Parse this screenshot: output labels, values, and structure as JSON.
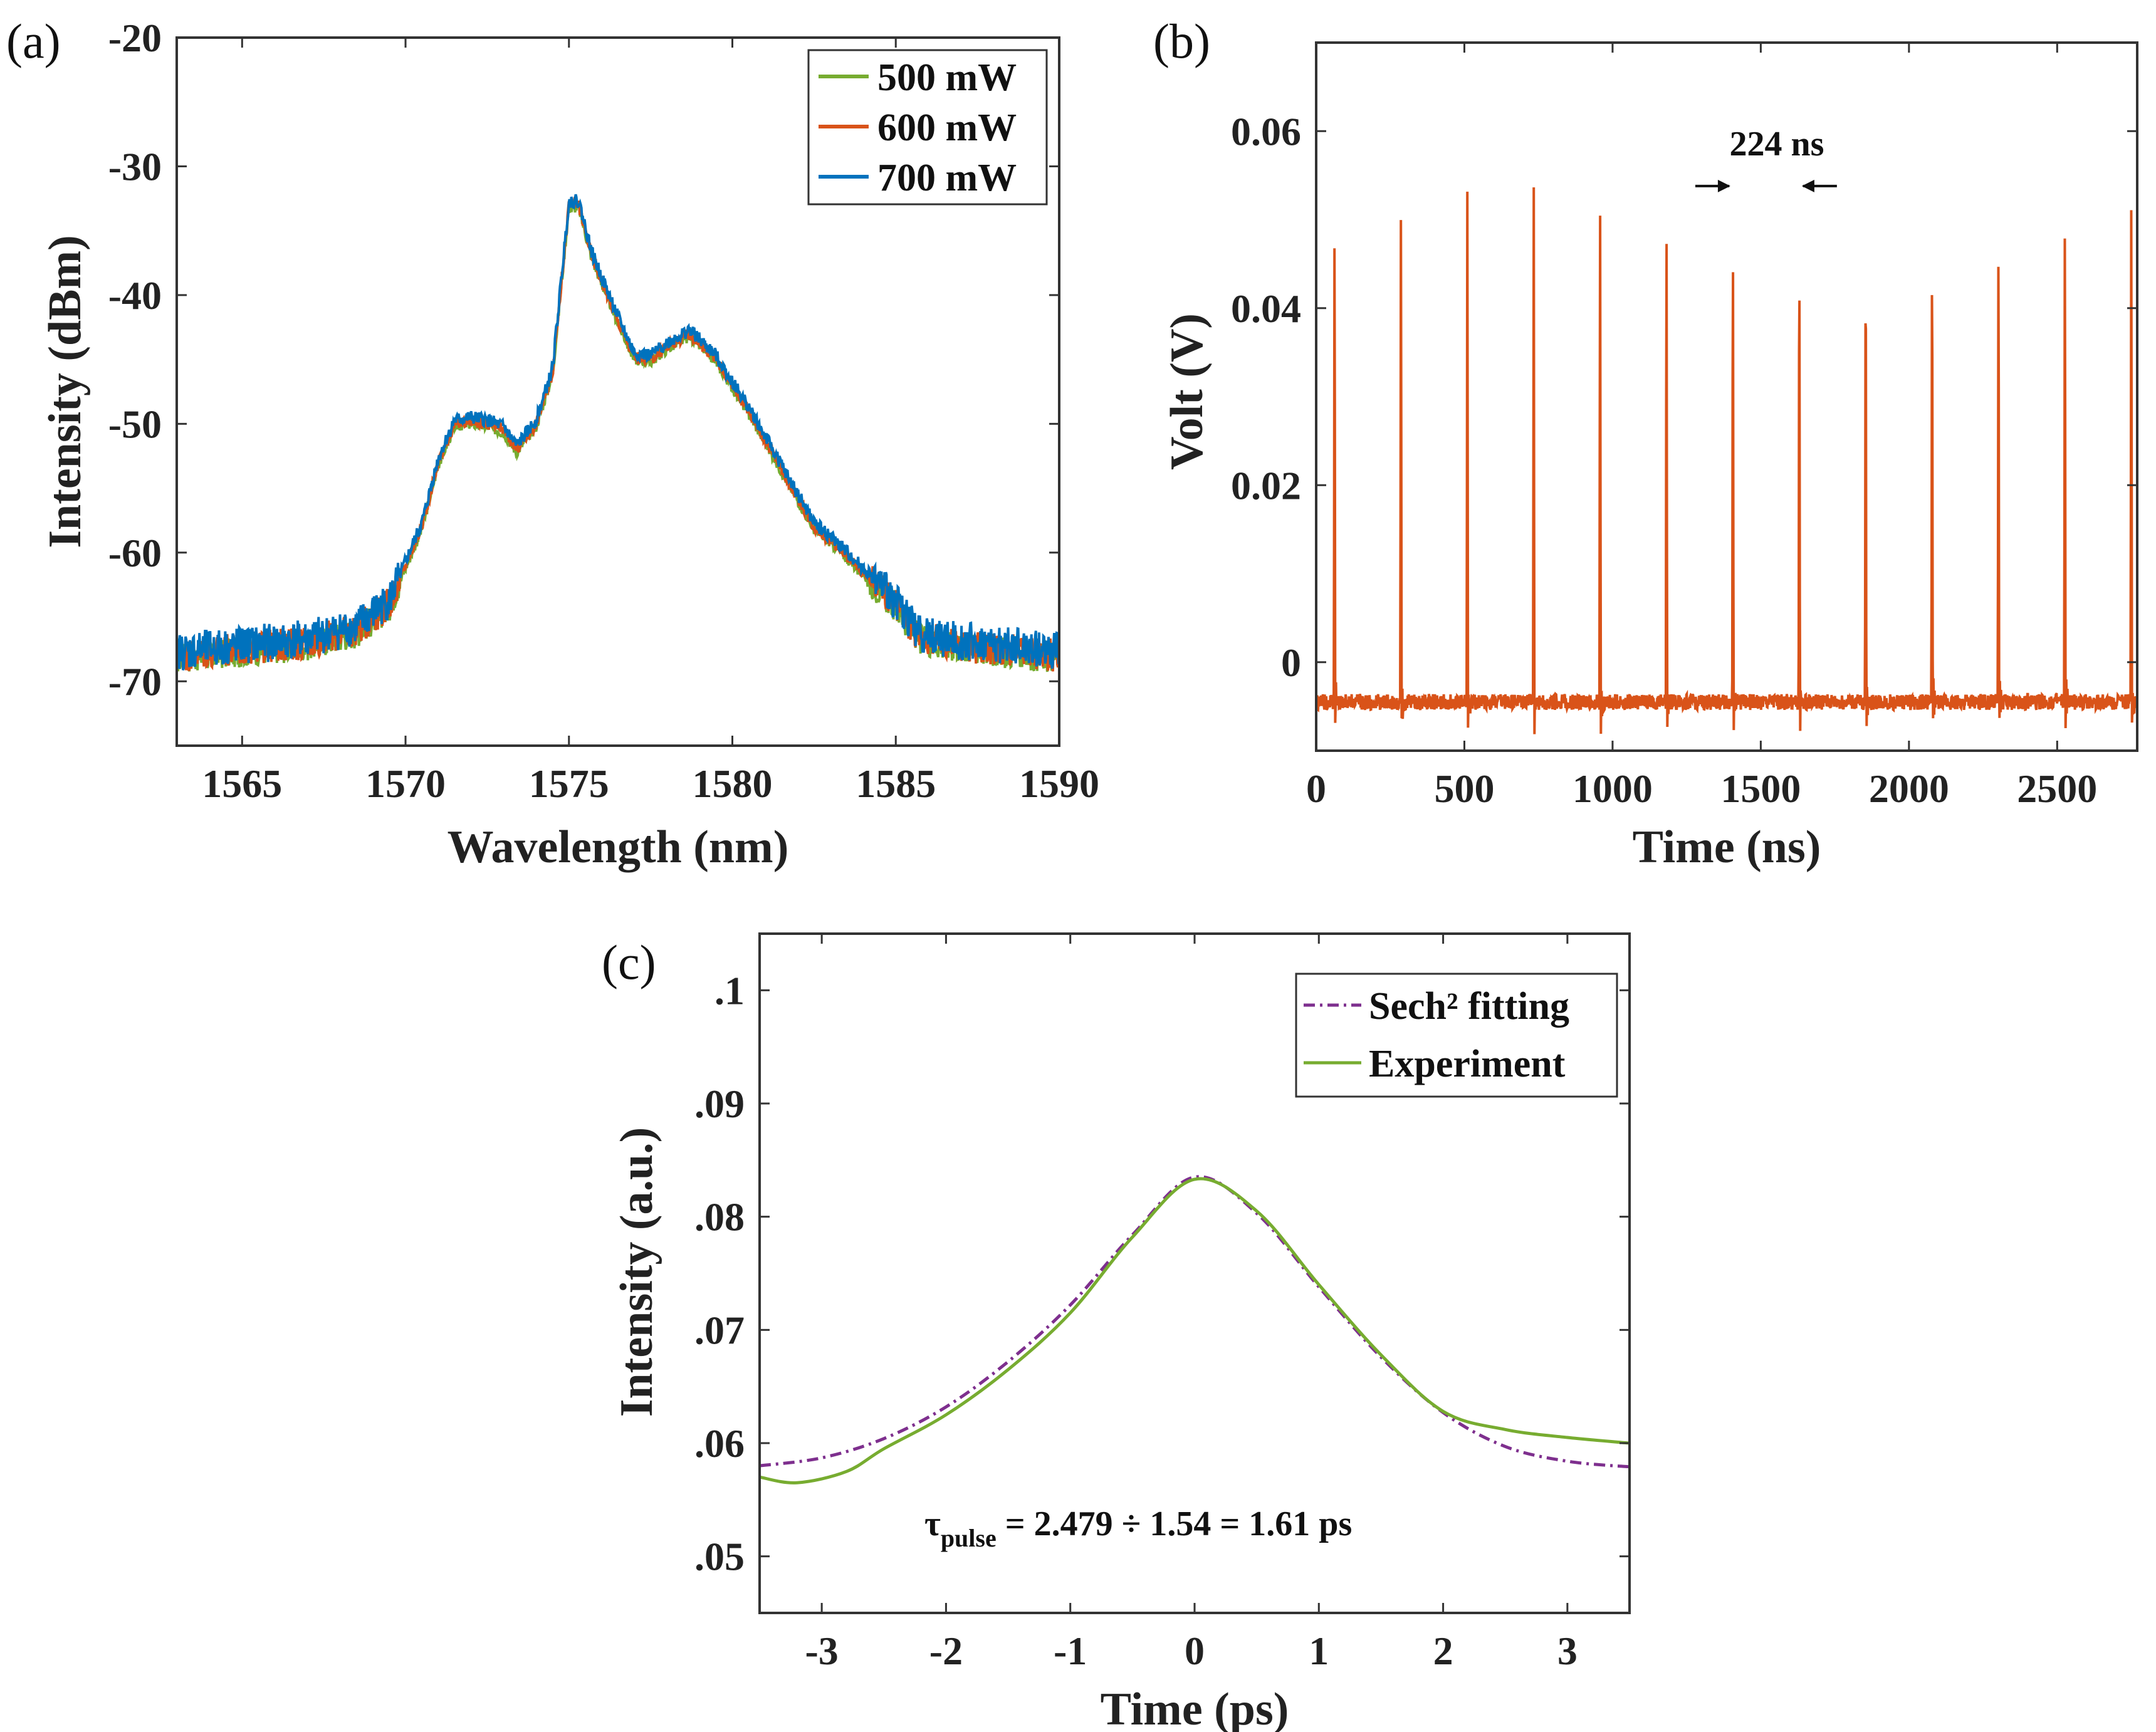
{
  "chart_data": [
    {
      "type": "line",
      "panel_label": "(a)",
      "xlabel": "Wavelength (nm)",
      "ylabel": "Intensity (dBm)",
      "xlim": [
        1563,
        1590
      ],
      "ylim": [
        -75,
        -20
      ],
      "xticks": [
        1565,
        1570,
        1575,
        1580,
        1585,
        1590
      ],
      "yticks": [
        -70,
        -60,
        -50,
        -40,
        -30,
        -20
      ],
      "grid": false,
      "legend_position": "top-right",
      "series": [
        {
          "name": "500 mW",
          "color": "#77ac30",
          "noise": 1.2,
          "offset": -0.2
        },
        {
          "name": "600 mW",
          "color": "#d95319",
          "noise": 1.3,
          "offset": 0.0
        },
        {
          "name": "700 mW",
          "color": "#0072bd",
          "noise": 1.5,
          "offset": 0.3
        }
      ],
      "envelope_x": [
        1563,
        1565,
        1567,
        1568.5,
        1569.5,
        1570,
        1570.5,
        1571,
        1571.5,
        1572,
        1572.5,
        1573,
        1573.4,
        1574,
        1574.5,
        1575,
        1575.3,
        1575.7,
        1576.5,
        1577,
        1577.5,
        1578,
        1578.7,
        1579.5,
        1580.5,
        1581.5,
        1582.5,
        1583.2,
        1584,
        1585,
        1585.7,
        1586.5,
        1588,
        1590
      ],
      "envelope_y": [
        -68,
        -67.5,
        -67,
        -66,
        -64,
        -61,
        -58,
        -53,
        -50,
        -49.8,
        -50,
        -50.5,
        -52,
        -50,
        -46,
        -33,
        -33,
        -37,
        -42,
        -44.8,
        -45,
        -44,
        -43,
        -45,
        -49,
        -53.5,
        -58,
        -59.5,
        -61.5,
        -64,
        -66.5,
        -67,
        -67.5,
        -68
      ]
    },
    {
      "type": "line",
      "panel_label": "(b)",
      "xlabel": "Time (ns)",
      "ylabel": "Volt (V)",
      "xlim": [
        0,
        2770
      ],
      "ylim": [
        -0.01,
        0.07
      ],
      "xticks": [
        0,
        500,
        1000,
        1500,
        2000,
        2500
      ],
      "yticks": [
        0,
        0.02,
        0.04,
        0.06
      ],
      "grid": false,
      "series": [
        {
          "name": "pulse train",
          "color": "#d95319"
        }
      ],
      "pulse_times": [
        62,
        286,
        510,
        734,
        958,
        1182,
        1406,
        1630,
        1854,
        2078,
        2302,
        2526,
        2750
      ],
      "peak_value": 0.055,
      "baseline_value": -0.0045,
      "period_annotation": "224 ns"
    },
    {
      "type": "line",
      "panel_label": "(c)",
      "xlabel": "Time (ps)",
      "ylabel": "Intensity (a.u.)",
      "xlim": [
        -3.5,
        3.5
      ],
      "ylim": [
        0.045,
        0.105
      ],
      "xticks": [
        -3,
        -2,
        -1,
        0,
        1,
        2,
        3
      ],
      "yticks": [
        0.05,
        0.06,
        0.07,
        0.08,
        0.09,
        0.1
      ],
      "grid": false,
      "legend_position": "top-right",
      "annotation_tau": "τ",
      "annotation_sub": "pulse",
      "annotation_rest": " = 2.479 ÷ 1.54 = 1.61 ps",
      "series": [
        {
          "name": "Sech² fitting",
          "color": "#7e2f8e",
          "style": "dashdot",
          "x": [
            -3.5,
            -3,
            -2.5,
            -2,
            -1.5,
            -1,
            -0.5,
            0,
            0.5,
            1,
            1.5,
            2,
            2.5,
            3,
            3.5
          ],
          "y": [
            0.058,
            0.0587,
            0.0604,
            0.0632,
            0.0672,
            0.0722,
            0.0784,
            0.0835,
            0.0803,
            0.0738,
            0.0676,
            0.0627,
            0.0597,
            0.0584,
            0.0579
          ]
        },
        {
          "name": "Experiment",
          "color": "#77ac30",
          "style": "solid",
          "x": [
            -3.5,
            -3.2,
            -2.8,
            -2.5,
            -2,
            -1.5,
            -1,
            -0.5,
            0,
            0.5,
            1,
            1.5,
            2,
            2.5,
            3,
            3.5
          ],
          "y": [
            0.057,
            0.0565,
            0.0575,
            0.0595,
            0.0625,
            0.0665,
            0.0715,
            0.0782,
            0.0833,
            0.0805,
            0.074,
            0.0678,
            0.0628,
            0.0612,
            0.0605,
            0.06
          ]
        }
      ]
    }
  ]
}
